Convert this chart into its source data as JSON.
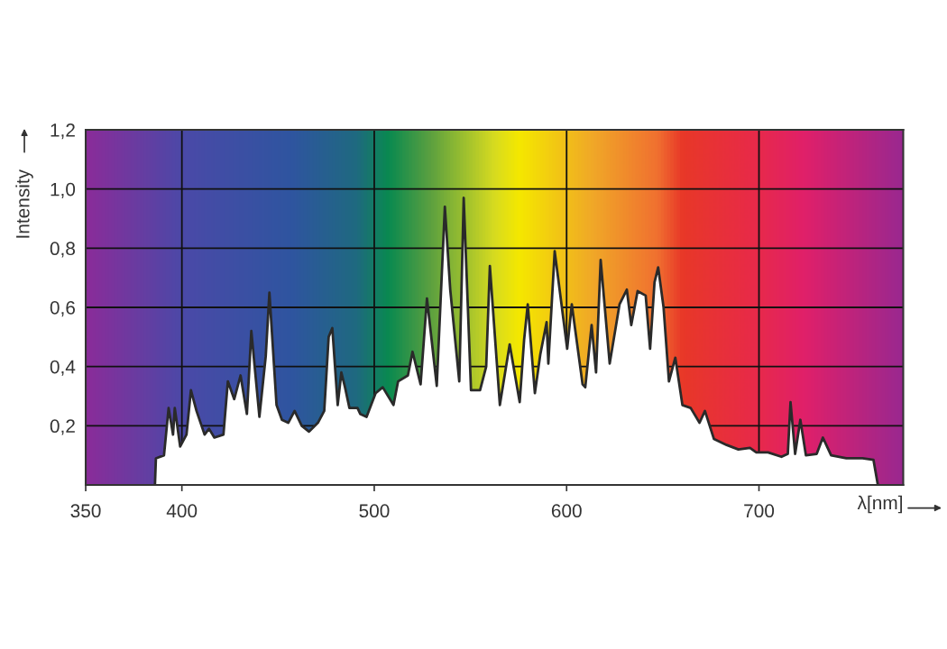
{
  "chart_data": {
    "type": "area",
    "xlabel": "λ[nm]",
    "ylabel": "Intensity",
    "x": [
      386,
      386.5,
      390.7,
      393.1,
      395.4,
      396.3,
      399.1,
      402.4,
      404.7,
      407.6,
      411.8,
      414.1,
      416.9,
      421.6,
      423.9,
      427.2,
      430.5,
      433.8,
      436.1,
      440.3,
      443.6,
      445.5,
      449.2,
      452.0,
      455.3,
      458.6,
      462.3,
      466.1,
      470.7,
      474.0,
      476.3,
      478.2,
      481.0,
      482.9,
      484.8,
      487.1,
      491.3,
      492.7,
      496.0,
      500.7,
      504.4,
      510.0,
      512.4,
      517.5,
      519.9,
      524.1,
      527.4,
      532.5,
      536.7,
      539.5,
      544.2,
      546.5,
      550.3,
      555.0,
      558.2,
      560.1,
      565.3,
      570.4,
      575.6,
      577.9,
      579.8,
      583.5,
      586.3,
      589.6,
      590.5,
      593.8,
      600.3,
      602.7,
      608.3,
      609.7,
      613.0,
      615.3,
      617.7,
      622.4,
      627.5,
      631.3,
      633.6,
      636.9,
      641.1,
      643.4,
      645.7,
      647.6,
      650.4,
      653.2,
      656.5,
      660.2,
      664.5,
      669.1,
      671.9,
      676.6,
      683.2,
      689.3,
      695.3,
      698.6,
      704.7,
      711.7,
      715.0,
      716.4,
      718.8,
      721.5,
      724.4,
      730.0,
      733.2,
      737.5,
      745.4,
      753.8,
      759.5,
      761.8
    ],
    "series": [
      {
        "color": "#ffffff",
        "values": [
          0,
          0.09,
          0.1,
          0.26,
          0.17,
          0.26,
          0.13,
          0.17,
          0.32,
          0.25,
          0.17,
          0.19,
          0.16,
          0.17,
          0.35,
          0.29,
          0.37,
          0.24,
          0.52,
          0.23,
          0.435,
          0.65,
          0.27,
          0.22,
          0.21,
          0.25,
          0.2,
          0.18,
          0.21,
          0.25,
          0.5,
          0.53,
          0.27,
          0.38,
          0.33,
          0.26,
          0.26,
          0.24,
          0.23,
          0.31,
          0.33,
          0.27,
          0.35,
          0.37,
          0.45,
          0.34,
          0.63,
          0.335,
          0.94,
          0.66,
          0.35,
          0.97,
          0.32,
          0.32,
          0.4,
          0.74,
          0.27,
          0.475,
          0.28,
          0.49,
          0.61,
          0.31,
          0.44,
          0.55,
          0.41,
          0.79,
          0.46,
          0.61,
          0.34,
          0.33,
          0.54,
          0.38,
          0.76,
          0.41,
          0.61,
          0.66,
          0.54,
          0.655,
          0.64,
          0.46,
          0.685,
          0.735,
          0.6,
          0.35,
          0.43,
          0.27,
          0.26,
          0.21,
          0.25,
          0.155,
          0.135,
          0.12,
          0.125,
          0.11,
          0.11,
          0.095,
          0.105,
          0.28,
          0.105,
          0.22,
          0.1,
          0.105,
          0.16,
          0.1,
          0.09,
          0.09,
          0.085,
          0
        ]
      }
    ],
    "xlim": [
      350,
      775
    ],
    "xticks": [
      350,
      400,
      500,
      600,
      700
    ],
    "ylim": [
      0,
      1.2
    ],
    "yticks": [
      {
        "value": 0.2,
        "label": "0,2"
      },
      {
        "value": 0.4,
        "label": "0,4"
      },
      {
        "value": 0.6,
        "label": "0,6"
      },
      {
        "value": 0.8,
        "label": "0,8"
      },
      {
        "value": 1.0,
        "label": "1,0"
      },
      {
        "value": 1.2,
        "label": "1,2"
      }
    ],
    "grid": true
  }
}
